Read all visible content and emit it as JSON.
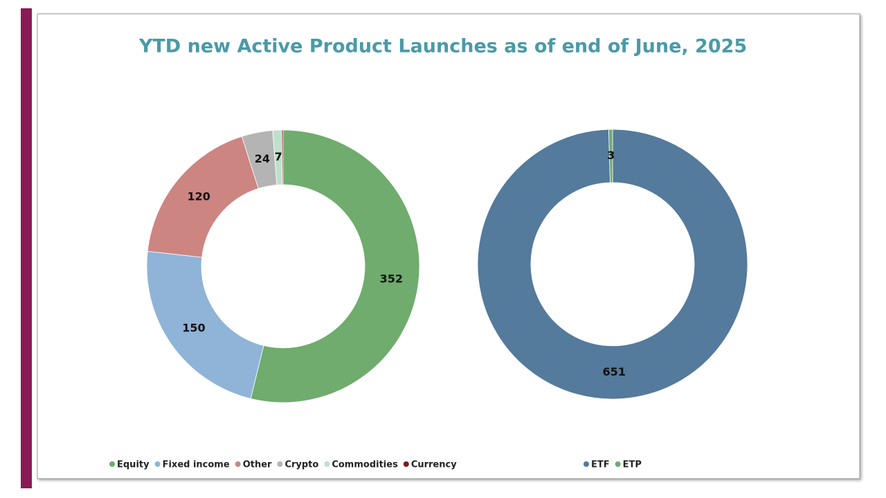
{
  "title": "YTD new Active Product Launches as of end of June, 2025",
  "chart_data": [
    {
      "type": "donut",
      "categories": [
        "Equity",
        "Fixed income",
        "Other",
        "Crypto",
        "Commodities",
        "Currency"
      ],
      "values": [
        352,
        150,
        120,
        24,
        7,
        1
      ],
      "colors": [
        "#6fac6d",
        "#8fb4d8",
        "#cd8582",
        "#b4b4b4",
        "#bfe0cc",
        "#7b1c1c"
      ]
    },
    {
      "type": "donut",
      "categories": [
        "ETF",
        "ETP"
      ],
      "values": [
        651,
        3
      ],
      "colors": [
        "#547a9c",
        "#6fac6d"
      ]
    }
  ]
}
